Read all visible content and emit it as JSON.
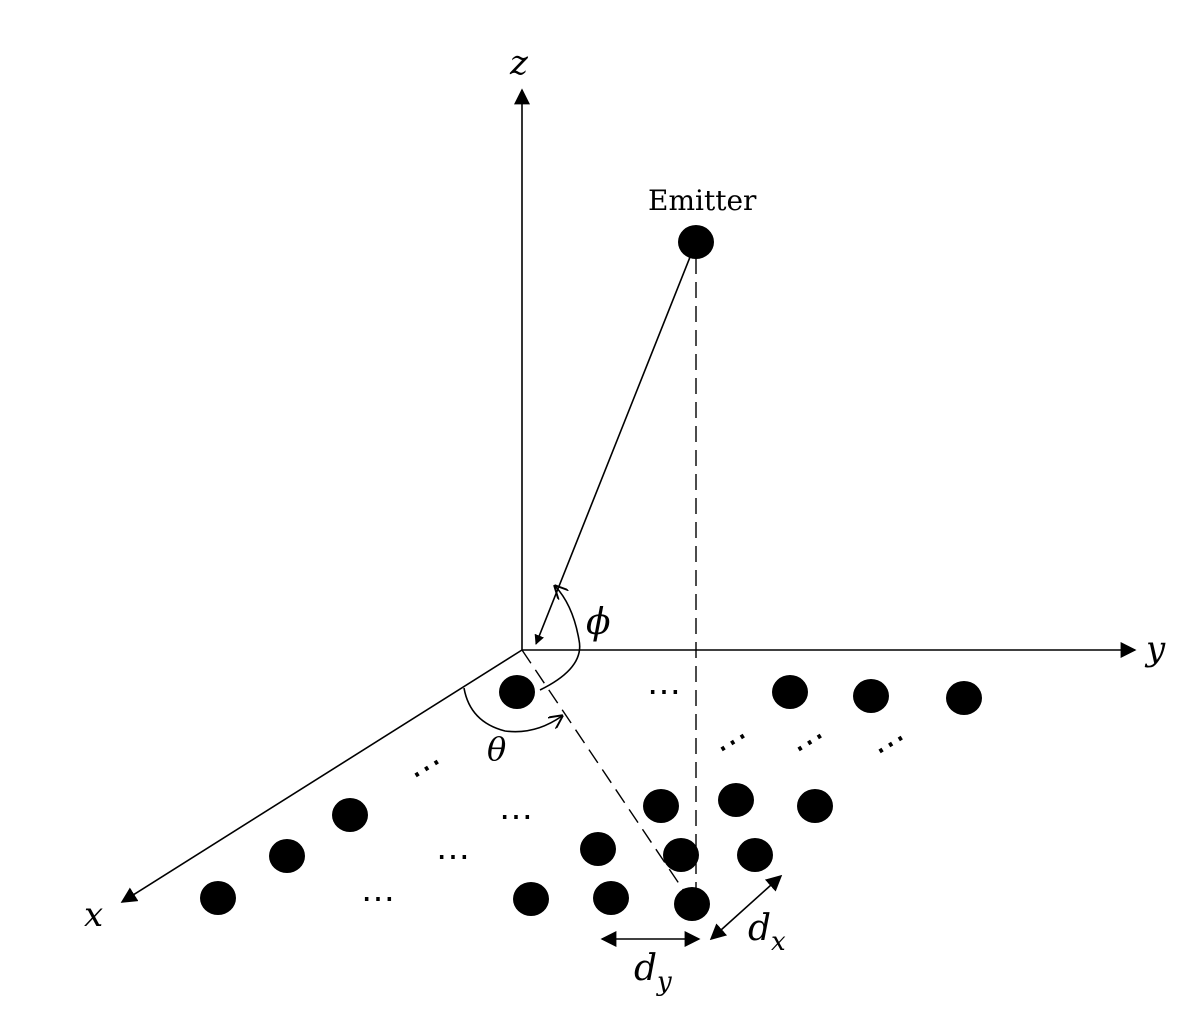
{
  "diagram": {
    "axes": {
      "z": "z",
      "y": "y",
      "x": "x"
    },
    "emitter_label": "Emitter",
    "angles": {
      "elevation": "ϕ",
      "azimuth": "θ"
    },
    "spacing": {
      "dx_base": "d",
      "dx_sub": "x",
      "dy_base": "d",
      "dy_sub": "y"
    },
    "ellipsis": "⋯"
  }
}
